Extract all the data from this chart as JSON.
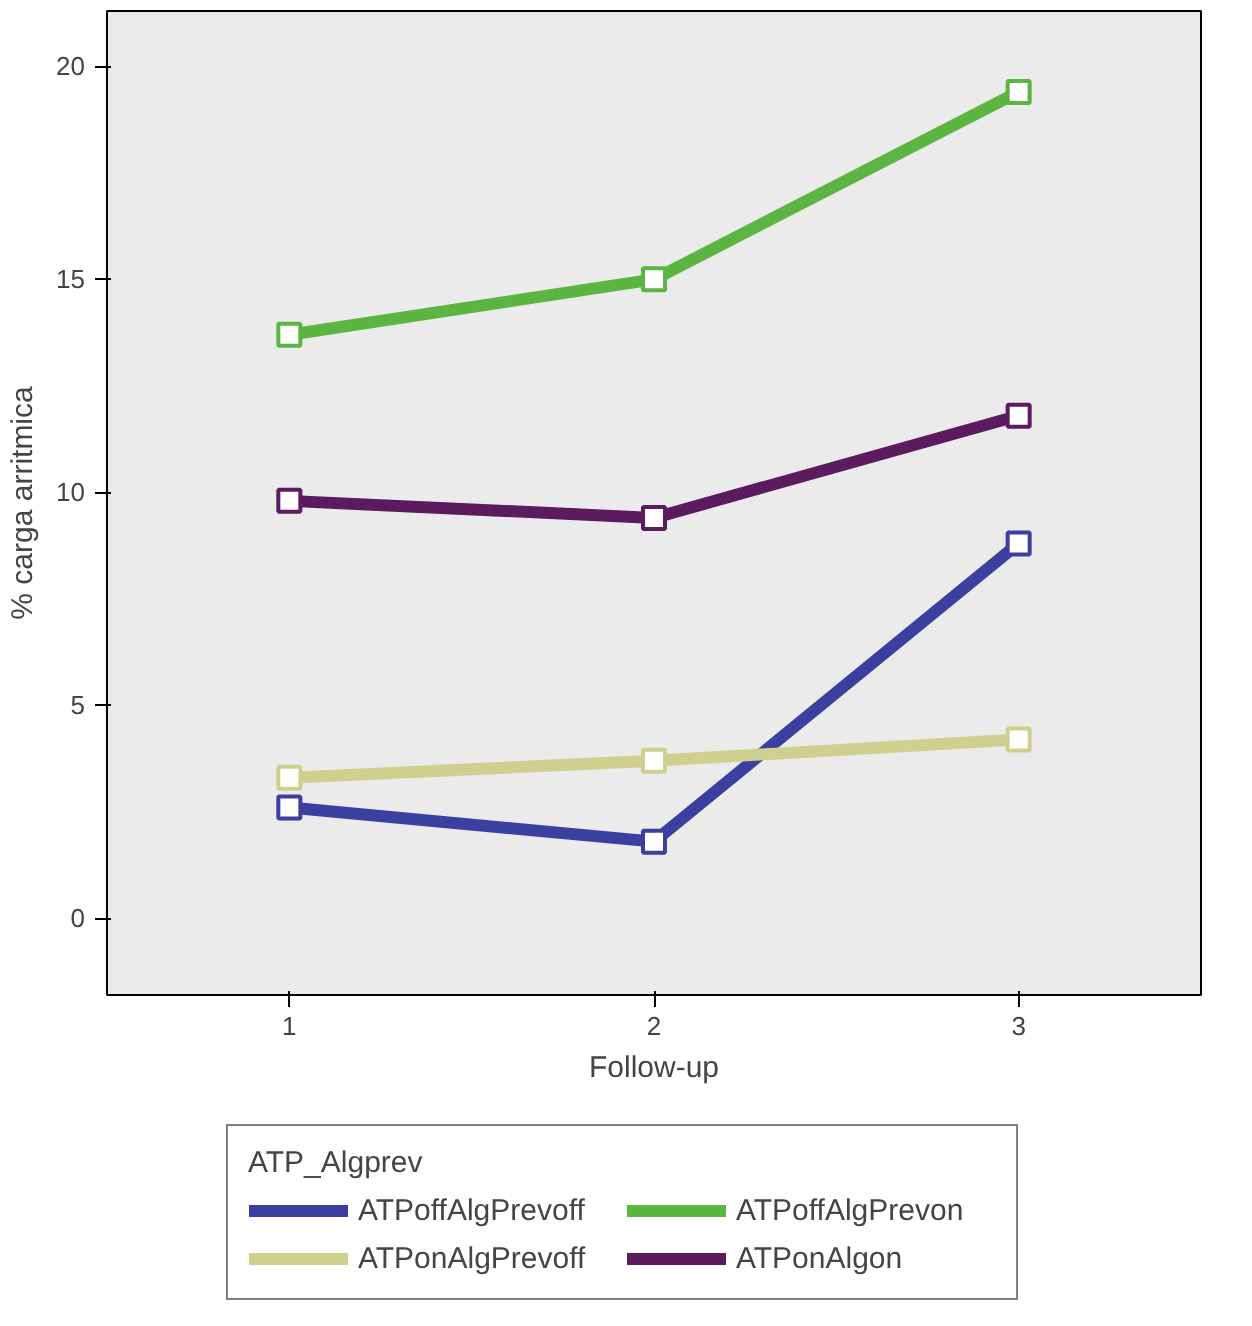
{
  "chart_data": {
    "type": "line",
    "xlabel": "Follow-up",
    "ylabel": "% carga arritmica",
    "legend_title": "ATP_Algprev",
    "x": [
      1,
      2,
      3
    ],
    "xlim": [
      0.5,
      3.5
    ],
    "ylim": [
      -1.8,
      21.3
    ],
    "xticks": [
      1,
      2,
      3
    ],
    "yticks": [
      0,
      5,
      10,
      15,
      20
    ],
    "grid": false,
    "legend": "bottom",
    "marker": "square",
    "line_style": "solid",
    "series": [
      {
        "name": "ATPoffAlgPrevoff",
        "color": "#3b3fa0",
        "values": [
          2.6,
          1.8,
          8.8
        ]
      },
      {
        "name": "ATPoffAlgPrevon",
        "color": "#5bb540",
        "values": [
          13.7,
          15.0,
          19.4
        ]
      },
      {
        "name": "ATPonAlgPrevoff",
        "color": "#cfcf8f",
        "values": [
          3.3,
          3.7,
          4.2
        ]
      },
      {
        "name": "ATPonAlgon",
        "color": "#5c1a5f",
        "values": [
          9.8,
          9.4,
          11.8
        ]
      }
    ]
  }
}
